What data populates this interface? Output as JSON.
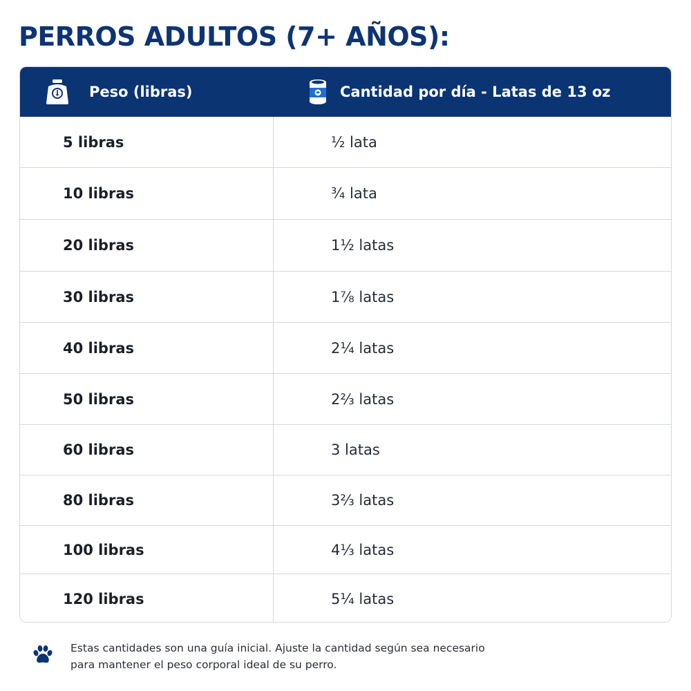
{
  "title": "PERROS ADULTOS (7+ AÑOS):",
  "table": {
    "header": {
      "weight_label": "Peso (libras)",
      "weight_icon": "scale-icon",
      "amount_label": "Cantidad por día - Latas de 13 oz",
      "amount_icon": "can-icon"
    },
    "rows": [
      {
        "weight": "5 libras",
        "amount": "½ lata"
      },
      {
        "weight": "10 libras",
        "amount": "¾ lata"
      },
      {
        "weight": "20 libras",
        "amount": "1½ latas"
      },
      {
        "weight": "30 libras",
        "amount": "1⅞ latas"
      },
      {
        "weight": "40 libras",
        "amount": "2¼ latas"
      },
      {
        "weight": "50 libras",
        "amount": "2⅔ latas"
      },
      {
        "weight": "60 libras",
        "amount": "3 latas"
      },
      {
        "weight": "80 libras",
        "amount": "3⅔ latas"
      },
      {
        "weight": "100 libras",
        "amount": "4⅓ latas"
      },
      {
        "weight": "120 libras",
        "amount": "5¼ latas"
      }
    ]
  },
  "footnote": {
    "icon": "paw-icon",
    "line1": "Estas cantidades son una guía inicial. Ajuste la cantidad según sea necesario",
    "line2": "para mantener el peso corporal ideal de su perro."
  },
  "colors": {
    "navy": "#0b3473",
    "title": "#0d3474",
    "border": "#d4d8e0"
  }
}
